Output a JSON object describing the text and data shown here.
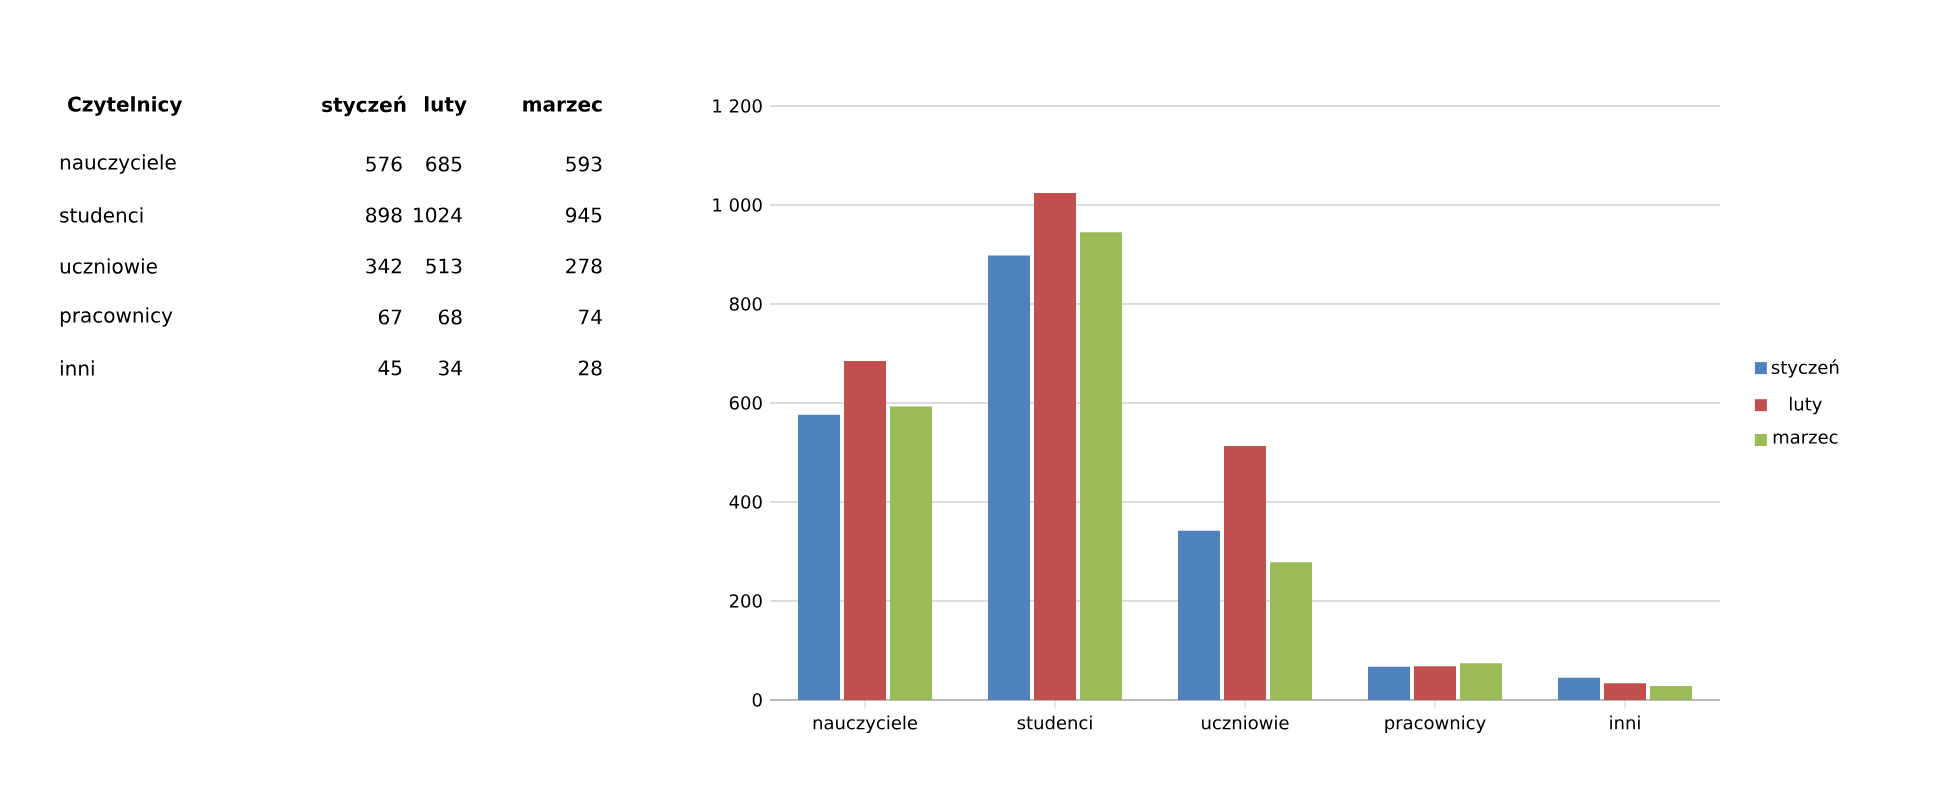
{
  "chart_data": {
    "type": "bar",
    "categories": [
      "nauczyciele",
      "studenci",
      "uczniowie",
      "pracownicy",
      "inni"
    ],
    "series": [
      {
        "name": "styczeń",
        "color": "#4f81bd",
        "values": [
          576,
          898,
          342,
          67,
          45
        ]
      },
      {
        "name": "luty",
        "color": "#c0504d",
        "values": [
          685,
          1024,
          513,
          68,
          34
        ]
      },
      {
        "name": "marzec",
        "color": "#9bbb59",
        "values": [
          593,
          945,
          278,
          74,
          28
        ]
      }
    ],
    "ylim": [
      0,
      1200
    ],
    "yticks": [
      0,
      200,
      400,
      600,
      800,
      {
        "value": 1000,
        "label": "1 000"
      },
      {
        "value": 1200,
        "label": "1 200"
      }
    ],
    "grid": "y",
    "legend": "right",
    "annotations": [
      "Czytelnicy",
      "576",
      "685",
      "593",
      "898",
      "1024",
      "945",
      "342",
      "513",
      "278",
      "67",
      "68",
      "74",
      "45",
      "34",
      "28"
    ]
  }
}
